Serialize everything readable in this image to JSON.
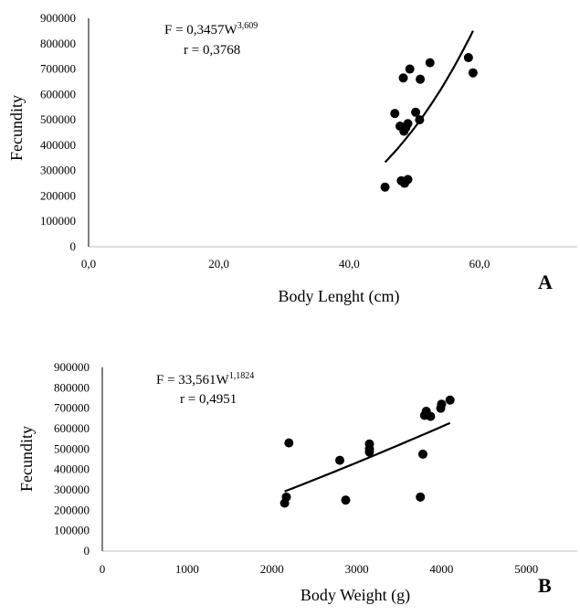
{
  "chart_data": [
    {
      "type": "scatter",
      "panel_label": "A",
      "xlabel": "Body Lenght  (cm)",
      "ylabel": "Fecundity",
      "xlim": [
        0,
        75
      ],
      "ylim": [
        0,
        900000
      ],
      "x_ticks": [
        "0,0",
        "20,0",
        "40,0",
        "60,0"
      ],
      "x_tick_values": [
        0,
        20,
        40,
        60
      ],
      "y_ticks": [
        "0",
        "100000",
        "200000",
        "300000",
        "400000",
        "500000",
        "600000",
        "700000",
        "800000",
        "900000"
      ],
      "y_tick_values": [
        0,
        100000,
        200000,
        300000,
        400000,
        500000,
        600000,
        700000,
        800000,
        900000
      ],
      "equation": {
        "prefix": "F = 0,3457W",
        "exponent": "3,609",
        "r": "r = 0,3768"
      },
      "grid": false,
      "points": [
        {
          "x": 45.5,
          "y": 235000
        },
        {
          "x": 47.0,
          "y": 525000
        },
        {
          "x": 47.8,
          "y": 475000
        },
        {
          "x": 48.0,
          "y": 260000
        },
        {
          "x": 48.3,
          "y": 665000
        },
        {
          "x": 48.4,
          "y": 455000
        },
        {
          "x": 48.5,
          "y": 250000
        },
        {
          "x": 48.7,
          "y": 470000
        },
        {
          "x": 49.0,
          "y": 485000
        },
        {
          "x": 49.0,
          "y": 265000
        },
        {
          "x": 49.3,
          "y": 700000
        },
        {
          "x": 50.2,
          "y": 530000
        },
        {
          "x": 50.8,
          "y": 500000
        },
        {
          "x": 50.9,
          "y": 660000
        },
        {
          "x": 52.4,
          "y": 725000
        },
        {
          "x": 58.3,
          "y": 745000
        },
        {
          "x": 59.0,
          "y": 685000
        }
      ],
      "trendline": {
        "type": "power",
        "coef": 0.3457,
        "exponent": 3.609,
        "x_range": [
          45.5,
          59.0
        ]
      }
    },
    {
      "type": "scatter",
      "panel_label": "B",
      "xlabel": "Body Weight  (g)",
      "ylabel": "Fecundity",
      "xlim": [
        0,
        5600
      ],
      "ylim": [
        0,
        900000
      ],
      "x_ticks": [
        "0",
        "1000",
        "2000",
        "3000",
        "4000",
        "5000"
      ],
      "x_tick_values": [
        0,
        1000,
        2000,
        3000,
        4000,
        5000
      ],
      "y_ticks": [
        "0",
        "100000",
        "200000",
        "300000",
        "400000",
        "500000",
        "600000",
        "700000",
        "800000",
        "900000"
      ],
      "y_tick_values": [
        0,
        100000,
        200000,
        300000,
        400000,
        500000,
        600000,
        700000,
        800000,
        900000
      ],
      "equation": {
        "prefix": "F = 33,561W",
        "exponent": "1,1824",
        "r": "r = 0,4951"
      },
      "grid": false,
      "points": [
        {
          "x": 2150,
          "y": 235000
        },
        {
          "x": 2170,
          "y": 265000
        },
        {
          "x": 2200,
          "y": 530000
        },
        {
          "x": 2800,
          "y": 445000
        },
        {
          "x": 2870,
          "y": 250000
        },
        {
          "x": 3150,
          "y": 525000
        },
        {
          "x": 3150,
          "y": 500000
        },
        {
          "x": 3150,
          "y": 485000
        },
        {
          "x": 3750,
          "y": 265000
        },
        {
          "x": 3780,
          "y": 475000
        },
        {
          "x": 3800,
          "y": 665000
        },
        {
          "x": 3820,
          "y": 685000
        },
        {
          "x": 3870,
          "y": 660000
        },
        {
          "x": 3990,
          "y": 700000
        },
        {
          "x": 4000,
          "y": 720000
        },
        {
          "x": 4100,
          "y": 740000
        }
      ],
      "trendline": {
        "type": "power",
        "coef": 33.561,
        "exponent": 1.1824,
        "x_range": [
          2150,
          4100
        ]
      }
    }
  ]
}
